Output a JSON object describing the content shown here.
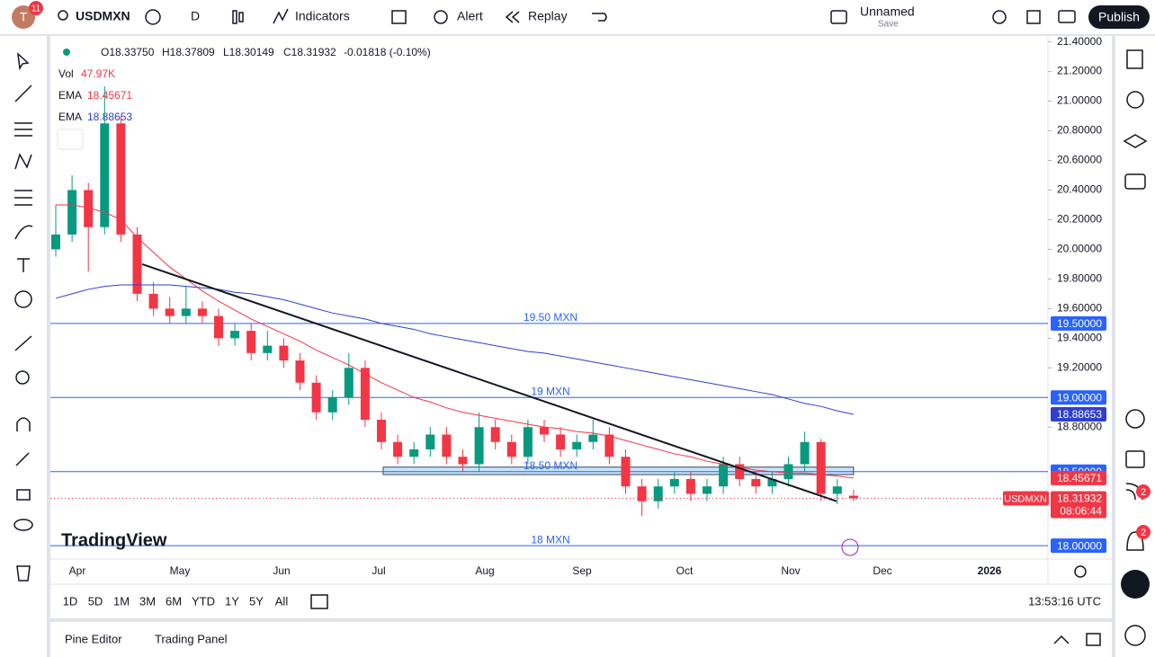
{
  "toolbar": {
    "avatar_initial": "T",
    "avatar_badge": "11",
    "symbol": "USDMXN",
    "interval": "D",
    "indicators": "Indicators",
    "alert": "Alert",
    "replay": "Replay",
    "layout_name": "Unnamed",
    "save": "Save",
    "publish": "Publish"
  },
  "legend": {
    "open": "O18.33750",
    "high": "H18.37809",
    "low": "L18.30149",
    "close": "C18.31932",
    "change": "-0.01818 (-0.10%)",
    "vol_label": "Vol",
    "vol_value": "47.97K",
    "ema1_label": "EMA",
    "ema1_value": "18.45671",
    "ema2_label": "EMA",
    "ema2_value": "18.88653"
  },
  "chart_data": {
    "type": "candlestick",
    "watermark": "TradingView",
    "x_labels": [
      "Apr",
      "May",
      "Jun",
      "Jul",
      "Aug",
      "Sep",
      "Oct",
      "Nov",
      "Dec",
      "2026"
    ],
    "up_color": "#089981",
    "down_color": "#f23645",
    "candles": [
      [
        20.0,
        20.3,
        19.95,
        20.1
      ],
      [
        20.1,
        20.5,
        20.05,
        20.4
      ],
      [
        20.4,
        20.45,
        19.85,
        20.15
      ],
      [
        20.15,
        21.1,
        20.1,
        20.85
      ],
      [
        20.85,
        20.9,
        20.05,
        20.1
      ],
      [
        20.1,
        20.15,
        19.65,
        19.7
      ],
      [
        19.7,
        19.78,
        19.55,
        19.6
      ],
      [
        19.6,
        19.68,
        19.5,
        19.55
      ],
      [
        19.55,
        19.75,
        19.5,
        19.6
      ],
      [
        19.6,
        19.65,
        19.5,
        19.55
      ],
      [
        19.55,
        19.6,
        19.35,
        19.4
      ],
      [
        19.4,
        19.5,
        19.35,
        19.45
      ],
      [
        19.45,
        19.5,
        19.25,
        19.3
      ],
      [
        19.3,
        19.45,
        19.25,
        19.35
      ],
      [
        19.35,
        19.4,
        19.2,
        19.25
      ],
      [
        19.25,
        19.3,
        19.05,
        19.1
      ],
      [
        19.1,
        19.15,
        18.85,
        18.9
      ],
      [
        18.9,
        19.05,
        18.85,
        19.0
      ],
      [
        19.0,
        19.3,
        18.95,
        19.2
      ],
      [
        19.2,
        19.25,
        18.8,
        18.85
      ],
      [
        18.85,
        18.9,
        18.65,
        18.7
      ],
      [
        18.7,
        18.75,
        18.55,
        18.6
      ],
      [
        18.6,
        18.7,
        18.55,
        18.65
      ],
      [
        18.65,
        18.8,
        18.6,
        18.75
      ],
      [
        18.75,
        18.8,
        18.55,
        18.6
      ],
      [
        18.6,
        18.65,
        18.5,
        18.55
      ],
      [
        18.55,
        18.9,
        18.5,
        18.8
      ],
      [
        18.8,
        18.85,
        18.65,
        18.7
      ],
      [
        18.7,
        18.75,
        18.55,
        18.6
      ],
      [
        18.6,
        18.85,
        18.55,
        18.8
      ],
      [
        18.8,
        18.85,
        18.7,
        18.75
      ],
      [
        18.75,
        18.8,
        18.6,
        18.65
      ],
      [
        18.65,
        18.75,
        18.6,
        18.7
      ],
      [
        18.7,
        18.85,
        18.65,
        18.75
      ],
      [
        18.75,
        18.8,
        18.55,
        18.6
      ],
      [
        18.6,
        18.65,
        18.35,
        18.4
      ],
      [
        18.4,
        18.45,
        18.2,
        18.3
      ],
      [
        18.3,
        18.45,
        18.25,
        18.4
      ],
      [
        18.4,
        18.5,
        18.35,
        18.45
      ],
      [
        18.45,
        18.5,
        18.3,
        18.35
      ],
      [
        18.35,
        18.45,
        18.3,
        18.4
      ],
      [
        18.4,
        18.6,
        18.35,
        18.55
      ],
      [
        18.55,
        18.6,
        18.4,
        18.45
      ],
      [
        18.45,
        18.5,
        18.35,
        18.4
      ],
      [
        18.4,
        18.5,
        18.35,
        18.45
      ],
      [
        18.45,
        18.6,
        18.4,
        18.55
      ],
      [
        18.55,
        18.77,
        18.5,
        18.7
      ],
      [
        18.7,
        18.72,
        18.3,
        18.35
      ],
      [
        18.35,
        18.45,
        18.28,
        18.4
      ],
      [
        18.3375,
        18.37809,
        18.30149,
        18.31932
      ]
    ],
    "overlays": [
      {
        "color": "#f23645",
        "badge": "18.45671",
        "values": [
          20.3,
          20.3,
          20.28,
          20.25,
          20.2,
          20.08,
          19.98,
          19.88,
          19.8,
          19.72,
          19.65,
          19.59,
          19.53,
          19.48,
          19.43,
          19.38,
          19.32,
          19.27,
          19.22,
          19.16,
          19.1,
          19.05,
          19.0,
          18.97,
          18.93,
          18.9,
          18.88,
          18.86,
          18.84,
          18.82,
          18.8,
          18.79,
          18.77,
          18.76,
          18.74,
          18.71,
          18.68,
          18.65,
          18.62,
          18.6,
          18.57,
          18.55,
          18.53,
          18.51,
          18.5,
          18.49,
          18.49,
          18.48,
          18.47,
          18.45671
        ]
      },
      {
        "color": "#2f3fd0",
        "badge": "18.88653",
        "values": [
          19.67,
          19.7,
          19.73,
          19.75,
          19.76,
          19.76,
          19.76,
          19.76,
          19.75,
          19.74,
          19.73,
          19.71,
          19.7,
          19.68,
          19.66,
          19.63,
          19.6,
          19.57,
          19.55,
          19.53,
          19.5,
          19.48,
          19.46,
          19.43,
          19.41,
          19.39,
          19.37,
          19.35,
          19.33,
          19.31,
          19.3,
          19.28,
          19.26,
          19.24,
          19.22,
          19.2,
          19.18,
          19.16,
          19.14,
          19.12,
          19.1,
          19.08,
          19.06,
          19.04,
          19.02,
          18.99,
          18.96,
          18.94,
          18.91,
          18.88653
        ]
      }
    ],
    "hlines": [
      {
        "value": 19.5,
        "label": "19.50 MXN",
        "badge": "19.50000"
      },
      {
        "value": 19.0,
        "label": "19 MXN",
        "badge": "19.00000"
      },
      {
        "value": 18.5,
        "label": "18.50 MXN",
        "badge": "18.50000"
      },
      {
        "value": 18.0,
        "label": "18 MXN",
        "badge": "18.00000"
      }
    ],
    "trendline": [
      19.9,
      18.3
    ],
    "zone": [
      18.48,
      18.53
    ],
    "last_price": {
      "symbol": "USDMXN",
      "badge": "18.31932",
      "value": 18.31932,
      "countdown": "08:06:44"
    },
    "ylim": [
      17.91,
      21.44
    ],
    "yticks": [
      {
        "value": 21.4,
        "label": "21.40000"
      },
      {
        "value": 21.2,
        "label": "21.20000"
      },
      {
        "value": 21.0,
        "label": "21.00000"
      },
      {
        "value": 20.8,
        "label": "20.80000"
      },
      {
        "value": 20.6,
        "label": "20.60000"
      },
      {
        "value": 20.4,
        "label": "20.40000"
      },
      {
        "value": 20.2,
        "label": "20.20000"
      },
      {
        "value": 20.0,
        "label": "20.00000"
      },
      {
        "value": 19.8,
        "label": "19.80000"
      },
      {
        "value": 19.6,
        "label": "19.60000"
      },
      {
        "value": 19.4,
        "label": "19.40000"
      },
      {
        "value": 19.2,
        "label": "19.20000"
      },
      {
        "value": 18.8,
        "label": "18.80000"
      }
    ]
  },
  "ranges": [
    "1D",
    "5D",
    "1M",
    "3M",
    "6M",
    "YTD",
    "1Y",
    "5Y",
    "All"
  ],
  "clock": "13:53:16 UTC",
  "panel_tabs": [
    "Pine Editor",
    "Trading Panel"
  ],
  "notifications": [
    "2",
    "2"
  ]
}
